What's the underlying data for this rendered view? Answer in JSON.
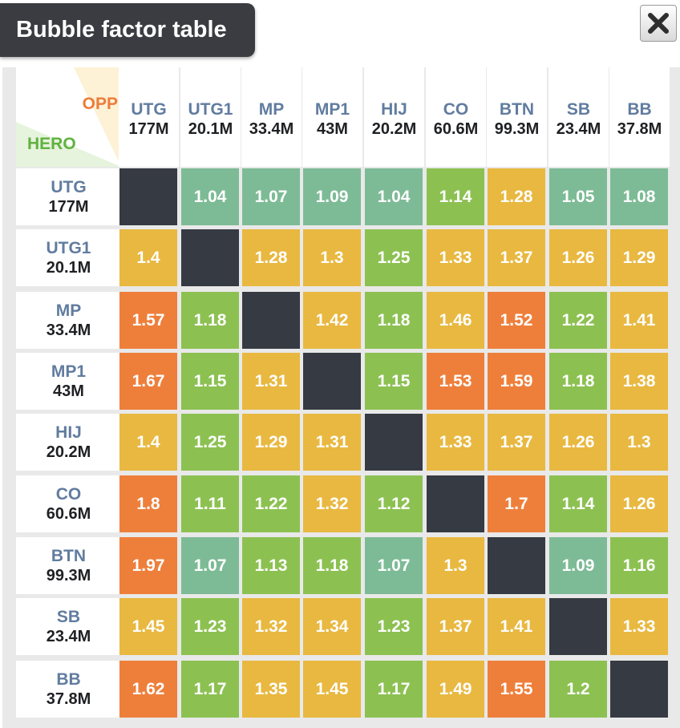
{
  "window": {
    "title": "Bubble factor table",
    "close_icon": "close-x-icon"
  },
  "table": {
    "corner": {
      "opp_label": "OPP",
      "hero_label": "HERO"
    },
    "players": [
      {
        "pos": "UTG",
        "stack": "177M"
      },
      {
        "pos": "UTG1",
        "stack": "20.1M"
      },
      {
        "pos": "MP",
        "stack": "33.4M"
      },
      {
        "pos": "MP1",
        "stack": "43M"
      },
      {
        "pos": "HIJ",
        "stack": "20.2M"
      },
      {
        "pos": "CO",
        "stack": "60.6M"
      },
      {
        "pos": "BTN",
        "stack": "99.3M"
      },
      {
        "pos": "SB",
        "stack": "23.4M"
      },
      {
        "pos": "BB",
        "stack": "37.8M"
      }
    ],
    "rows": [
      [
        "",
        "1.04",
        "1.07",
        "1.09",
        "1.04",
        "1.14",
        "1.28",
        "1.05",
        "1.08"
      ],
      [
        "1.4",
        "",
        "1.28",
        "1.3",
        "1.25",
        "1.33",
        "1.37",
        "1.26",
        "1.29"
      ],
      [
        "1.57",
        "1.18",
        "",
        "1.42",
        "1.18",
        "1.46",
        "1.52",
        "1.22",
        "1.41"
      ],
      [
        "1.67",
        "1.15",
        "1.31",
        "",
        "1.15",
        "1.53",
        "1.59",
        "1.18",
        "1.38"
      ],
      [
        "1.4",
        "1.25",
        "1.29",
        "1.31",
        "",
        "1.33",
        "1.37",
        "1.26",
        "1.3"
      ],
      [
        "1.8",
        "1.11",
        "1.22",
        "1.32",
        "1.12",
        "",
        "1.7",
        "1.14",
        "1.26"
      ],
      [
        "1.97",
        "1.07",
        "1.13",
        "1.18",
        "1.07",
        "1.3",
        "",
        "1.09",
        "1.16"
      ],
      [
        "1.45",
        "1.23",
        "1.32",
        "1.34",
        "1.23",
        "1.37",
        "1.41",
        "",
        "1.33"
      ],
      [
        "1.62",
        "1.17",
        "1.35",
        "1.45",
        "1.17",
        "1.49",
        "1.55",
        "1.2",
        ""
      ]
    ],
    "colors": {
      "teal": "#7dbb96",
      "green": "#8cc152",
      "yellow": "#e8b840",
      "orange": "#ee7f3b",
      "diagonal": "#363a42"
    },
    "color_map": [
      [
        "diagonal",
        "teal",
        "teal",
        "teal",
        "teal",
        "green",
        "yellow",
        "teal",
        "teal"
      ],
      [
        "yellow",
        "diagonal",
        "yellow",
        "yellow",
        "green",
        "yellow",
        "yellow",
        "yellow",
        "yellow"
      ],
      [
        "orange",
        "green",
        "diagonal",
        "yellow",
        "green",
        "yellow",
        "orange",
        "green",
        "yellow"
      ],
      [
        "orange",
        "green",
        "yellow",
        "diagonal",
        "green",
        "orange",
        "orange",
        "green",
        "yellow"
      ],
      [
        "yellow",
        "green",
        "yellow",
        "yellow",
        "diagonal",
        "yellow",
        "yellow",
        "yellow",
        "yellow"
      ],
      [
        "orange",
        "green",
        "green",
        "yellow",
        "green",
        "diagonal",
        "orange",
        "green",
        "yellow"
      ],
      [
        "orange",
        "teal",
        "green",
        "green",
        "teal",
        "yellow",
        "diagonal",
        "teal",
        "green"
      ],
      [
        "yellow",
        "green",
        "yellow",
        "yellow",
        "green",
        "yellow",
        "yellow",
        "diagonal",
        "yellow"
      ],
      [
        "orange",
        "green",
        "yellow",
        "yellow",
        "green",
        "yellow",
        "orange",
        "green",
        "diagonal"
      ]
    ]
  }
}
